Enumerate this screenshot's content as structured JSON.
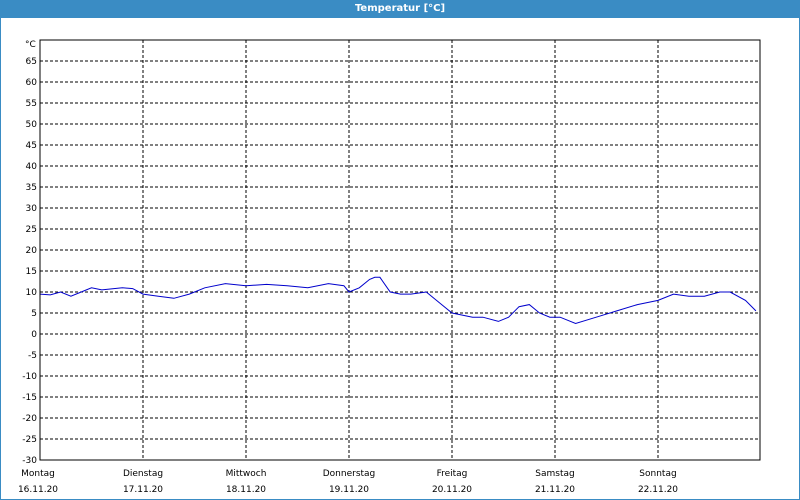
{
  "window": {
    "title": "Temperatur [°C]"
  },
  "colors": {
    "header_bg": "#3a8cc4",
    "header_text": "#ffffff",
    "line": "#0000cc",
    "grid": "#000000"
  },
  "chart_data": {
    "type": "line",
    "title": "Temperatur [°C]",
    "ylabel": "°C",
    "xlabel": "",
    "ylim": [
      -30,
      70
    ],
    "yticks": [
      65,
      60,
      55,
      50,
      45,
      40,
      35,
      30,
      25,
      20,
      15,
      10,
      5,
      0,
      -5,
      -10,
      -15,
      -20,
      -25,
      -30
    ],
    "xlim": [
      0,
      7
    ],
    "grid": true,
    "legend": "none",
    "days": [
      {
        "name": "Montag",
        "date": "16.11.20"
      },
      {
        "name": "Dienstag",
        "date": "17.11.20"
      },
      {
        "name": "Mittwoch",
        "date": "18.11.20"
      },
      {
        "name": "Donnerstag",
        "date": "19.11.20"
      },
      {
        "name": "Freitag",
        "date": "20.11.20"
      },
      {
        "name": "Samstag",
        "date": "21.11.20"
      },
      {
        "name": "Sonntag",
        "date": "22.11.20"
      }
    ],
    "series": [
      {
        "x": [
          0,
          0.1,
          0.2,
          0.3,
          0.4,
          0.5,
          0.6,
          0.8,
          0.9,
          1.0,
          1.15,
          1.3,
          1.45,
          1.6,
          1.8,
          2.0,
          2.2,
          2.4,
          2.6,
          2.8,
          2.95,
          3.0,
          3.1,
          3.2,
          3.25,
          3.3,
          3.4,
          3.5,
          3.6,
          3.75,
          3.9,
          4.0,
          4.2,
          4.3,
          4.45,
          4.55,
          4.65,
          4.75,
          4.85,
          4.95,
          5.05,
          5.2,
          5.4,
          5.6,
          5.8,
          6.0,
          6.15,
          6.3,
          6.45,
          6.6,
          6.7,
          6.85,
          6.95
        ],
        "y": [
          9.5,
          9.3,
          10,
          9,
          10,
          11,
          10.5,
          11,
          10.8,
          9.5,
          9,
          8.5,
          9.5,
          11,
          12,
          11.5,
          11.8,
          11.5,
          11,
          12,
          11.5,
          10,
          11,
          13,
          13.5,
          13.5,
          10,
          9.5,
          9.5,
          10,
          7,
          5,
          4,
          4,
          3,
          4,
          6.5,
          7,
          5,
          4,
          4,
          2.5,
          4,
          5.5,
          7,
          8,
          9.5,
          9,
          9,
          10,
          10,
          8,
          5.5
        ]
      }
    ]
  }
}
